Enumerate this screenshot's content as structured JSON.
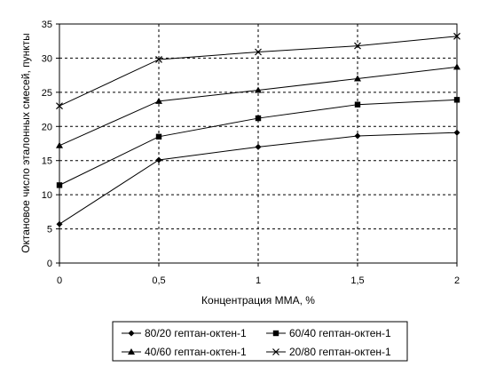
{
  "chart_data": {
    "type": "line",
    "title": "",
    "xlabel": "Концентрация ММА, %",
    "ylabel": "Октановое число эталонных смесей, пункты",
    "x": [
      0,
      0.5,
      1,
      1.5,
      2
    ],
    "x_tick_labels": [
      "0",
      "0,5",
      "1",
      "1,5",
      "2"
    ],
    "y_tick_labels": [
      "0",
      "5",
      "10",
      "15",
      "20",
      "25",
      "30",
      "35"
    ],
    "xlim": [
      0,
      2
    ],
    "ylim": [
      0,
      35
    ],
    "grid": "dashed",
    "legend_position": "bottom",
    "series": [
      {
        "name": "80/20 гептан-октен-1",
        "marker": "diamond",
        "values": [
          5.7,
          15.1,
          17.0,
          18.6,
          19.1
        ]
      },
      {
        "name": "60/40 гептан-октен-1",
        "marker": "square",
        "values": [
          11.4,
          18.5,
          21.2,
          23.2,
          23.9
        ]
      },
      {
        "name": "40/60 гептан-октен-1",
        "marker": "triangle",
        "values": [
          17.2,
          23.7,
          25.3,
          27.0,
          28.7
        ]
      },
      {
        "name": "20/80 гептан-октен-1",
        "marker": "cross",
        "values": [
          23.0,
          29.8,
          30.9,
          31.8,
          33.2
        ]
      }
    ]
  }
}
